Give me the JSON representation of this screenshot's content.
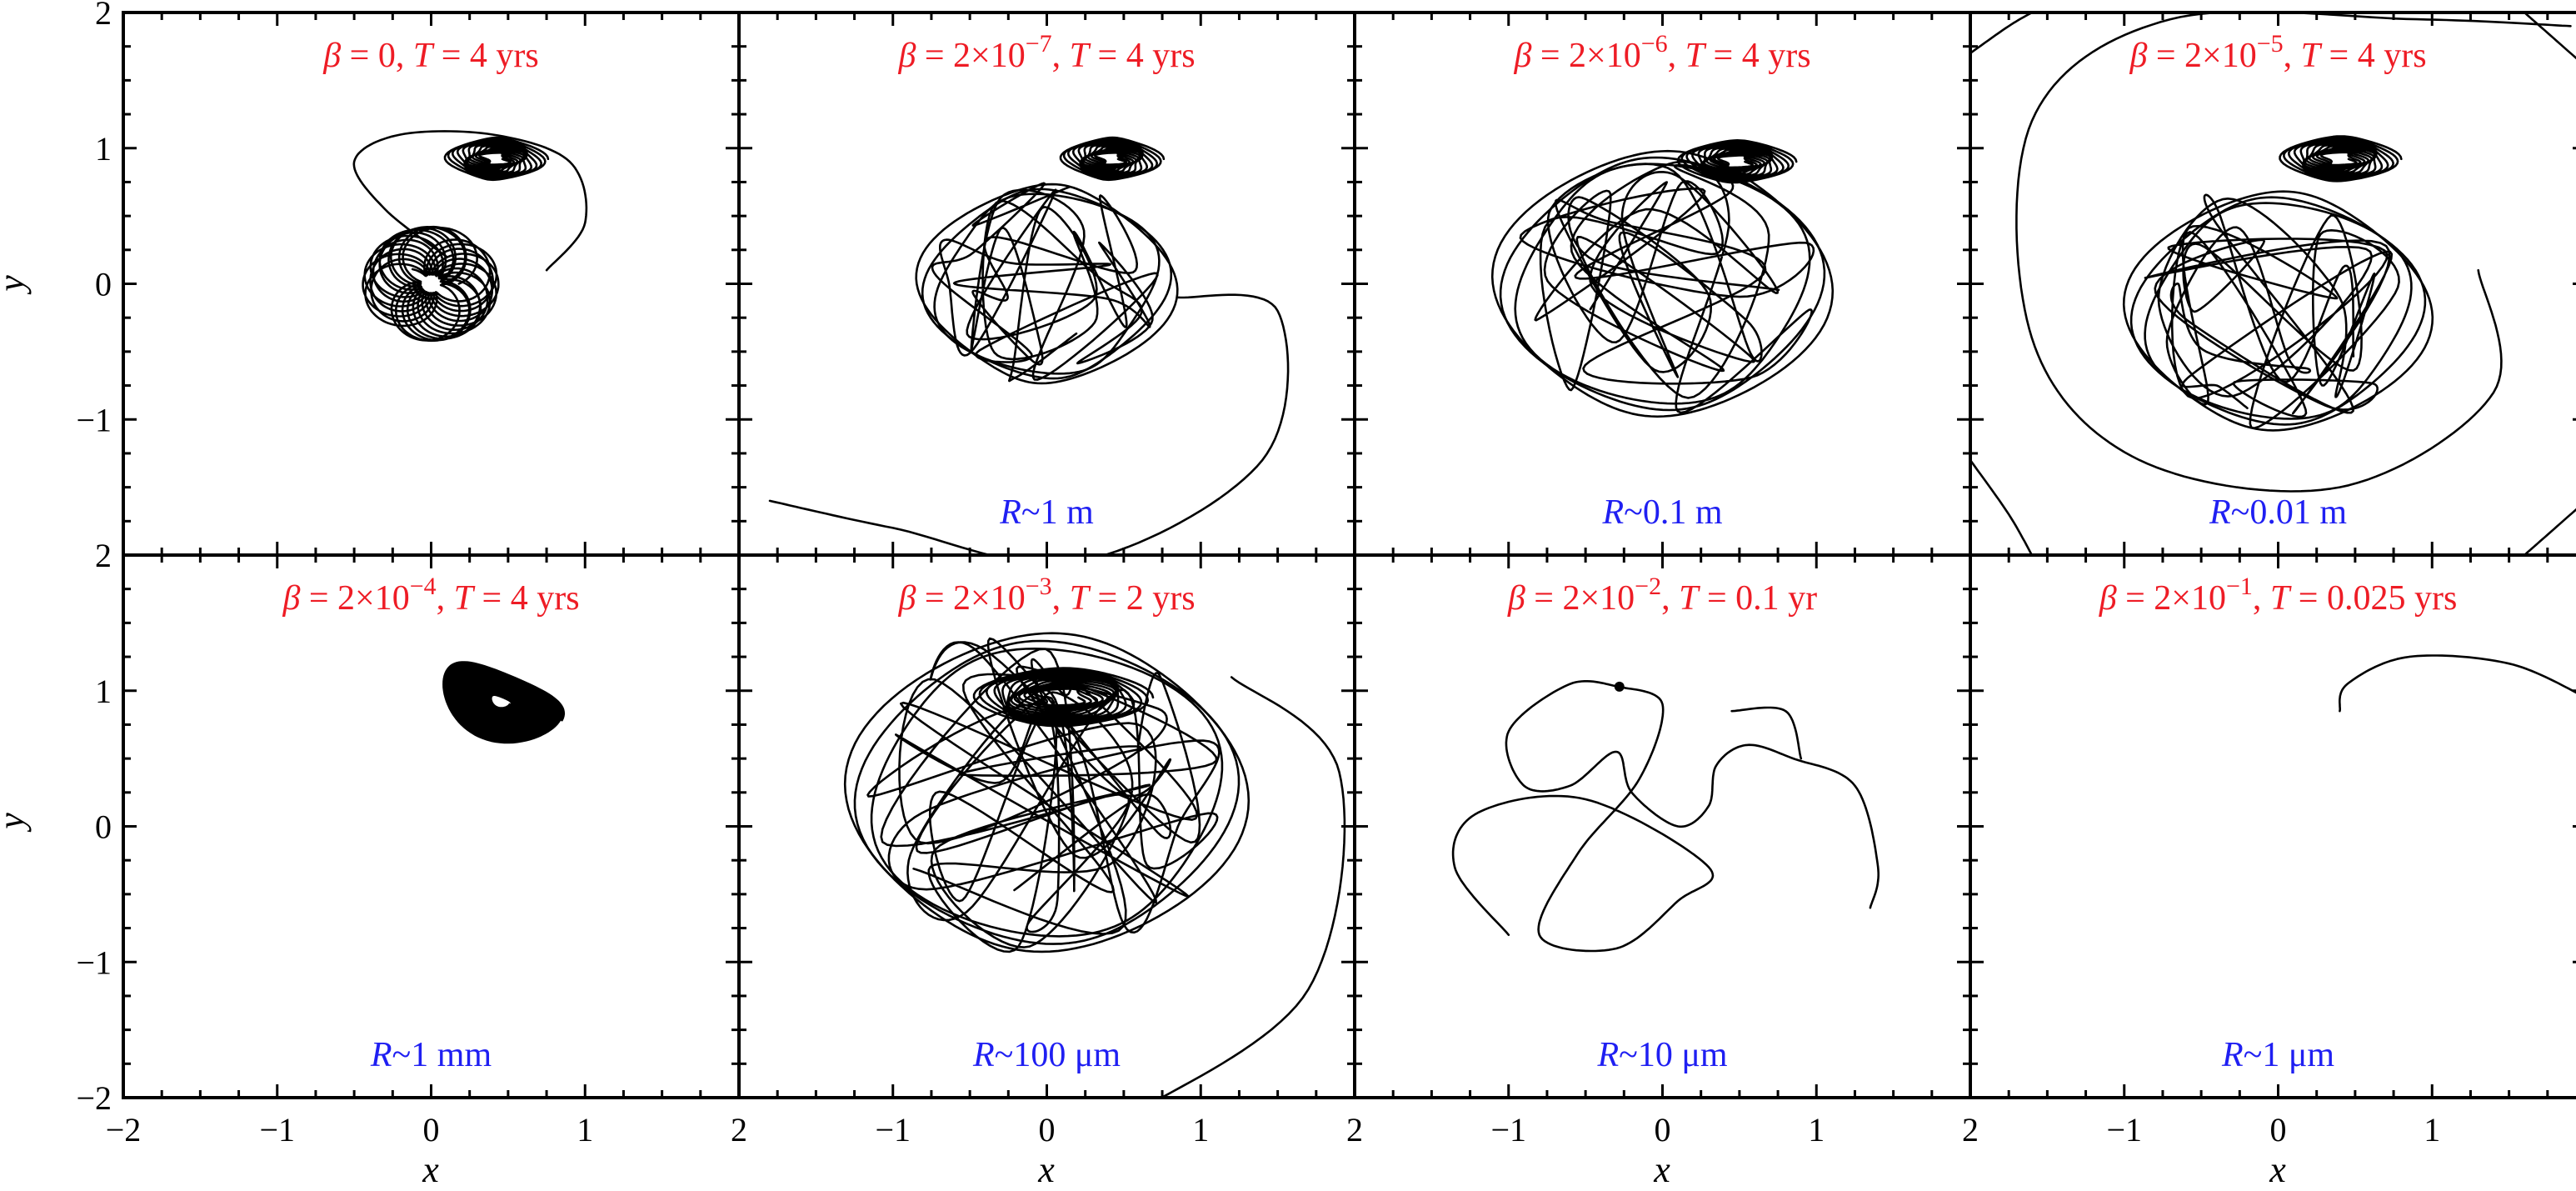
{
  "chart_data": {
    "type": "line",
    "layout": {
      "rows": 2,
      "cols": 4,
      "shared_x_axis": true,
      "shared_y_axis": true
    },
    "xlim": [
      -2,
      2
    ],
    "ylim": [
      -2,
      2
    ],
    "xlabel": "x",
    "ylabel": "y",
    "xticks": [
      "−2",
      "−1",
      "0",
      "1",
      "2"
    ],
    "yticks": [
      "2",
      "1",
      "0",
      "−1",
      "−2"
    ],
    "colors": {
      "title": "#ee1c25",
      "annotation": "#1f1ff2",
      "trajectory": "#000000"
    },
    "panels": [
      {
        "title": {
          "b_val": "0",
          "b_exp": "",
          "t_val": "4 yrs"
        },
        "annotation": {
          "r": ""
        },
        "pattern": "rosette",
        "params": {
          "cx": 0.0,
          "cy": 0.0,
          "r": 0.42,
          "petals": 13,
          "turns": 13
        },
        "cluster": {
          "cx": 0.42,
          "cy": 0.92,
          "rx": 0.3,
          "ry": 0.16
        }
      },
      {
        "title": {
          "b_val": "2×10",
          "b_exp": "−7",
          "t_val": "4 yrs"
        },
        "annotation": {
          "r": "1 m"
        },
        "pattern": "loops",
        "params": {
          "cx": 0.0,
          "cy": 0.0,
          "r": 0.75,
          "n": 15,
          "seed": 3
        },
        "cluster": {
          "cx": 0.42,
          "cy": 0.92,
          "rx": 0.3,
          "ry": 0.16
        },
        "tail": [
          [
            0.85,
            -0.1
          ],
          [
            1.5,
            -0.2
          ],
          [
            1.4,
            -1.3
          ],
          [
            0.2,
            -2.05
          ],
          [
            -1.0,
            -1.8
          ],
          [
            -1.8,
            -1.6
          ]
        ]
      },
      {
        "title": {
          "b_val": "2×10",
          "b_exp": "−6",
          "t_val": "4 yrs"
        },
        "annotation": {
          "r": "0.1 m"
        },
        "pattern": "loops",
        "params": {
          "cx": 0.0,
          "cy": 0.0,
          "r": 1.0,
          "n": 16,
          "seed": 7
        },
        "cluster": {
          "cx": 0.48,
          "cy": 0.9,
          "rx": 0.35,
          "ry": 0.16
        }
      },
      {
        "title": {
          "b_val": "2×10",
          "b_exp": "−5",
          "t_val": "4 yrs"
        },
        "annotation": {
          "r": "0.01 m"
        },
        "pattern": "loops",
        "params": {
          "cx": 0.0,
          "cy": -0.2,
          "r": 0.9,
          "n": 16,
          "seed": 11
        },
        "cluster": {
          "cx": 0.4,
          "cy": 0.92,
          "rx": 0.36,
          "ry": 0.17
        },
        "tail": [
          [
            1.3,
            0.1
          ],
          [
            1.4,
            -0.8
          ],
          [
            0.4,
            -1.5
          ],
          [
            -0.9,
            -1.3
          ],
          [
            -1.6,
            -0.4
          ],
          [
            -1.6,
            1.2
          ],
          [
            -0.7,
            1.95
          ],
          [
            0.9,
            1.95
          ],
          [
            1.9,
            1.9
          ]
        ],
        "arcs": [
          [
            -2.0,
            1.7,
            -1.6,
            2.0
          ],
          [
            -2.0,
            -1.3,
            -1.6,
            -2.0
          ],
          [
            1.6,
            2.0,
            2.0,
            1.6
          ],
          [
            1.6,
            -2.0,
            2.0,
            -1.6
          ]
        ]
      },
      {
        "title": {
          "b_val": "2×10",
          "b_exp": "−4",
          "t_val": "4 yrs"
        },
        "annotation": {
          "r": "1 mm"
        },
        "pattern": "blob",
        "params": {
          "cx": 0.45,
          "cy": 0.92,
          "rx": 0.42,
          "ry": 0.25,
          "turns": 28
        }
      },
      {
        "title": {
          "b_val": "2×10",
          "b_exp": "−3",
          "t_val": "2 yrs"
        },
        "annotation": {
          "r": "100 μm"
        },
        "pattern": "loops",
        "params": {
          "cx": 0.0,
          "cy": 0.25,
          "r": 1.2,
          "n": 22,
          "seed": 19
        },
        "cluster": {
          "cx": 0.1,
          "cy": 0.95,
          "rx": 0.55,
          "ry": 0.22
        },
        "tail": [
          [
            1.2,
            1.1
          ],
          [
            1.9,
            0.4
          ],
          [
            1.7,
            -1.2
          ],
          [
            0.6,
            -2.1
          ]
        ]
      },
      {
        "title": {
          "b_val": "2×10",
          "b_exp": "−2",
          "t_val": "0.1 yr"
        },
        "annotation": {
          "r": "10 μm"
        },
        "pattern": "path",
        "params": {
          "points": [
            [
              -0.28,
              1.03
            ],
            [
              -0.6,
              1.05
            ],
            [
              -1.0,
              0.7
            ],
            [
              -0.9,
              0.3
            ],
            [
              -0.6,
              0.3
            ],
            [
              -0.3,
              0.55
            ],
            [
              -0.2,
              0.25
            ],
            [
              0.1,
              0.0
            ],
            [
              0.3,
              0.15
            ],
            [
              0.35,
              0.45
            ],
            [
              0.55,
              0.6
            ],
            [
              0.85,
              0.5
            ],
            [
              1.25,
              0.3
            ],
            [
              1.4,
              -0.3
            ],
            [
              1.35,
              -0.6
            ]
          ],
          "start_dot": true,
          "extra": [
            [
              -0.28,
              1.03
            ],
            [
              0.0,
              0.9
            ],
            [
              -0.15,
              0.35
            ],
            [
              -0.55,
              -0.2
            ],
            [
              -0.8,
              -0.8
            ],
            [
              -0.3,
              -0.9
            ],
            [
              0.1,
              -0.55
            ],
            [
              0.3,
              -0.3
            ],
            [
              -0.5,
              0.2
            ],
            [
              -1.2,
              0.1
            ],
            [
              -1.35,
              -0.3
            ],
            [
              -1.0,
              -0.8
            ]
          ],
          "extra2": [
            [
              0.45,
              0.85
            ],
            [
              0.8,
              0.85
            ],
            [
              0.9,
              0.5
            ]
          ]
        }
      },
      {
        "title": {
          "b_val": "2×10",
          "b_exp": "−1",
          "t_val": "0.025 yrs"
        },
        "annotation": {
          "r": "1 μm"
        },
        "pattern": "path",
        "params": {
          "points": [
            [
              0.4,
              0.85
            ],
            [
              0.45,
              1.05
            ],
            [
              0.85,
              1.25
            ],
            [
              1.5,
              1.2
            ],
            [
              2.0,
              0.95
            ]
          ],
          "start_dot": false
        }
      }
    ]
  }
}
